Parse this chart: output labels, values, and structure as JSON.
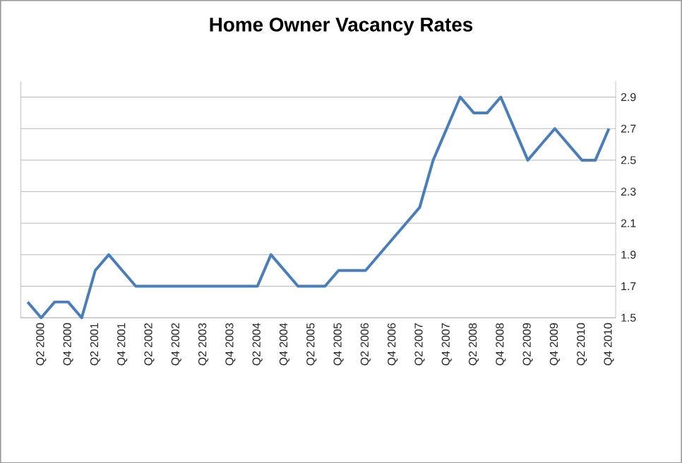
{
  "chart_data": {
    "type": "line",
    "title": "Home Owner Vacancy Rates",
    "categories": [
      null,
      "Q2 2000",
      null,
      "Q4 2000",
      null,
      "Q2 2001",
      null,
      "Q4 2001",
      null,
      "Q2 2002",
      null,
      "Q4 2002",
      null,
      "Q2 2003",
      null,
      "Q4 2003",
      null,
      "Q2 2004",
      null,
      "Q4 2004",
      null,
      "Q2 2005",
      null,
      "Q4 2005",
      null,
      "Q2 2006",
      null,
      "Q4 2006",
      null,
      "Q2 2007",
      null,
      "Q4 2007",
      null,
      "Q2 2008",
      null,
      "Q4 2008",
      null,
      "Q2 2009",
      null,
      "Q4 2009",
      null,
      "Q2 2010",
      null,
      "Q4 2010"
    ],
    "values": [
      1.6,
      1.5,
      1.6,
      1.6,
      1.5,
      1.8,
      1.9,
      1.8,
      1.7,
      1.7,
      1.7,
      1.7,
      1.7,
      1.7,
      1.7,
      1.7,
      1.7,
      1.7,
      1.9,
      1.8,
      1.7,
      1.7,
      1.7,
      1.8,
      1.8,
      1.8,
      1.9,
      2.0,
      2.1,
      2.2,
      2.5,
      2.7,
      2.9,
      2.8,
      2.8,
      2.9,
      2.7,
      2.5,
      2.6,
      2.7,
      2.6,
      2.5,
      2.5,
      2.7
    ],
    "color": "#4a7ebb",
    "ylim": [
      1.5,
      3.0
    ],
    "yticks": [
      1.5,
      1.7,
      1.9,
      2.1,
      2.3,
      2.5,
      2.7,
      2.9
    ],
    "grid": "y",
    "marker": "none",
    "line_style": "solid"
  }
}
